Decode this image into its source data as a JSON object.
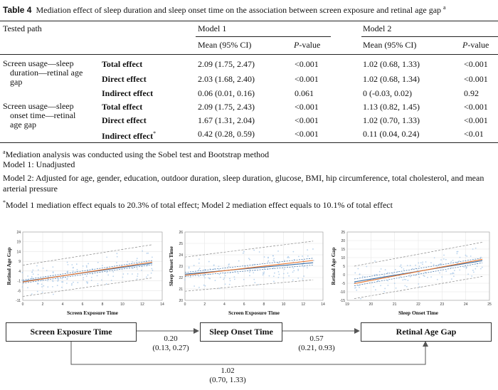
{
  "caption": {
    "label": "Table 4",
    "text": "Mediation effect of sleep duration and sleep onset time on the association between screen exposure and retinal age gap",
    "sup": "a"
  },
  "table": {
    "tested_path_header": "Tested path",
    "model1_header": "Model 1",
    "model2_header": "Model 2",
    "mean_ci_header": "Mean (95% CI)",
    "pvalue_header_p": "P",
    "pvalue_header_rest": "-value",
    "groups": [
      {
        "path_lines": [
          "Screen usage—sleep",
          "duration—retinal age",
          "gap"
        ],
        "rows": [
          {
            "effect": "Total effect",
            "sup": "",
            "m1_mean": "2.09 (1.75, 2.47)",
            "m1_p": "<0.001",
            "m2_mean": "1.02 (0.68, 1.33)",
            "m2_p": "<0.001"
          },
          {
            "effect": "Direct effect",
            "sup": "",
            "m1_mean": "2.03 (1.68, 2.40)",
            "m1_p": "<0.001",
            "m2_mean": "1.02 (0.68, 1.34)",
            "m2_p": "<0.001"
          },
          {
            "effect": "Indirect effect",
            "sup": "",
            "m1_mean": "0.06 (0.01, 0.16)",
            "m1_p": "0.061",
            "m2_mean": "0 (-0.03, 0.02)",
            "m2_p": "0.92"
          }
        ]
      },
      {
        "path_lines": [
          "Screen usage—sleep",
          "onset time—retinal",
          "age gap"
        ],
        "rows": [
          {
            "effect": "Total effect",
            "sup": "",
            "m1_mean": "2.09 (1.75, 2.43)",
            "m1_p": "<0.001",
            "m2_mean": "1.13 (0.82, 1.45)",
            "m2_p": "<0.001"
          },
          {
            "effect": "Direct effect",
            "sup": "",
            "m1_mean": "1.67 (1.31, 2.04)",
            "m1_p": "<0.001",
            "m2_mean": "1.02 (0.70, 1.33)",
            "m2_p": "<0.001"
          },
          {
            "effect": "Indirect effect",
            "sup": "*",
            "m1_mean": "0.42 (0.28, 0.59)",
            "m1_p": "<0.001",
            "m2_mean": "0.11 (0.04, 0.24)",
            "m2_p": "<0.01"
          }
        ]
      }
    ]
  },
  "notes": {
    "a_mark": "a",
    "a_text": "Mediation analysis was conducted using the Sobel test and Bootstrap method",
    "model1": "Model 1: Unadjusted",
    "model2": "Model 2: Adjusted for age, gender, education, outdoor duration, sleep duration, glucose, BMI, hip circumference, total cholesterol, and mean arterial pressure",
    "star_mark": "*",
    "star_text": "Model 1 mediation effect equals to 20.3% of total effect; Model 2 mediation effect equals to 10.1% of total effect"
  },
  "chart_data": [
    {
      "type": "scatter",
      "xlabel": "Screen Exposure Time",
      "ylabel": "Retinal Age Gap",
      "xlim": [
        0,
        14
      ],
      "ylim": [
        -11,
        24
      ],
      "xticks": [
        "0",
        "2",
        "4",
        "6",
        "8",
        "10",
        "12",
        "14"
      ],
      "yticks": [
        "-11",
        "-6",
        "-1",
        "4",
        "9",
        "14",
        "19",
        "24"
      ],
      "fit_blue": [
        [
          0,
          -1.3
        ],
        [
          13,
          8.0
        ]
      ],
      "fit_orange": [
        [
          0,
          -1.6
        ],
        [
          13,
          8.6
        ]
      ],
      "pi_upper": [
        [
          0,
          7
        ],
        [
          13,
          17.5
        ]
      ],
      "pi_lower": [
        [
          0,
          -9
        ],
        [
          13,
          0.5
        ]
      ],
      "ci_upper": [
        [
          0,
          -0.6
        ],
        [
          13,
          9.4
        ]
      ],
      "ci_lower": [
        [
          0,
          -2.2
        ],
        [
          13,
          7.2
        ]
      ],
      "grid": true
    },
    {
      "type": "scatter",
      "xlabel": "Screen Exposure Time",
      "ylabel": "Sleep Onset Time",
      "xlim": [
        0,
        14
      ],
      "ylim": [
        20,
        26
      ],
      "xticks": [
        "0",
        "2",
        "4",
        "6",
        "8",
        "10",
        "12",
        "14"
      ],
      "yticks": [
        "20",
        "21",
        "22",
        "23",
        "24",
        "25",
        "26"
      ],
      "fit_blue": [
        [
          0,
          22.3
        ],
        [
          13,
          23.3
        ]
      ],
      "fit_orange": [
        [
          0,
          22.2
        ],
        [
          13,
          23.5
        ]
      ],
      "pi_upper": [
        [
          0,
          23.8
        ],
        [
          13,
          25.2
        ]
      ],
      "pi_lower": [
        [
          0,
          20.8
        ],
        [
          13,
          21.8
        ]
      ],
      "ci_upper": [
        [
          0,
          22.45
        ],
        [
          13,
          23.7
        ]
      ],
      "ci_lower": [
        [
          0,
          22.1
        ],
        [
          13,
          23.1
        ]
      ],
      "grid": true
    },
    {
      "type": "scatter",
      "xlabel": "Sleep Onset Time",
      "ylabel": "Retinal Age Gap",
      "xlim": [
        19,
        25
      ],
      "ylim": [
        -15,
        25
      ],
      "xticks": [
        "19",
        "20",
        "21",
        "22",
        "23",
        "24",
        "25"
      ],
      "yticks": [
        "-15",
        "-10",
        "-5",
        "0",
        "5",
        "10",
        "15",
        "20",
        "25"
      ],
      "fit_blue": [
        [
          19.3,
          -4.2
        ],
        [
          24.7,
          8.2
        ]
      ],
      "fit_orange": [
        [
          19.3,
          -5.2
        ],
        [
          24.7,
          9.0
        ]
      ],
      "pi_upper": [
        [
          19.3,
          5
        ],
        [
          24.7,
          19
        ]
      ],
      "pi_lower": [
        [
          19.3,
          -14
        ],
        [
          24.7,
          -1
        ]
      ],
      "ci_upper": [
        [
          19.3,
          -2.5
        ],
        [
          24.7,
          9.8
        ]
      ],
      "ci_lower": [
        [
          19.3,
          -6.5
        ],
        [
          24.7,
          7.0
        ]
      ],
      "grid": true
    }
  ],
  "diagram": {
    "box_x": "Screen Exposure Time",
    "box_m": "Sleep Onset Time",
    "box_y": "Retinal Age Gap",
    "a_coef": "0.20",
    "a_ci": "(0.13, 0.27)",
    "b_coef": "0.57",
    "b_ci": "(0.21, 0.93)",
    "c_coef": "1.02",
    "c_ci": "(0.70, 1.33)"
  },
  "colors": {
    "blue_fit": "#3a6ea5",
    "orange_fit": "#e8742c",
    "points": "#a8c8e8",
    "band": "#888888"
  }
}
